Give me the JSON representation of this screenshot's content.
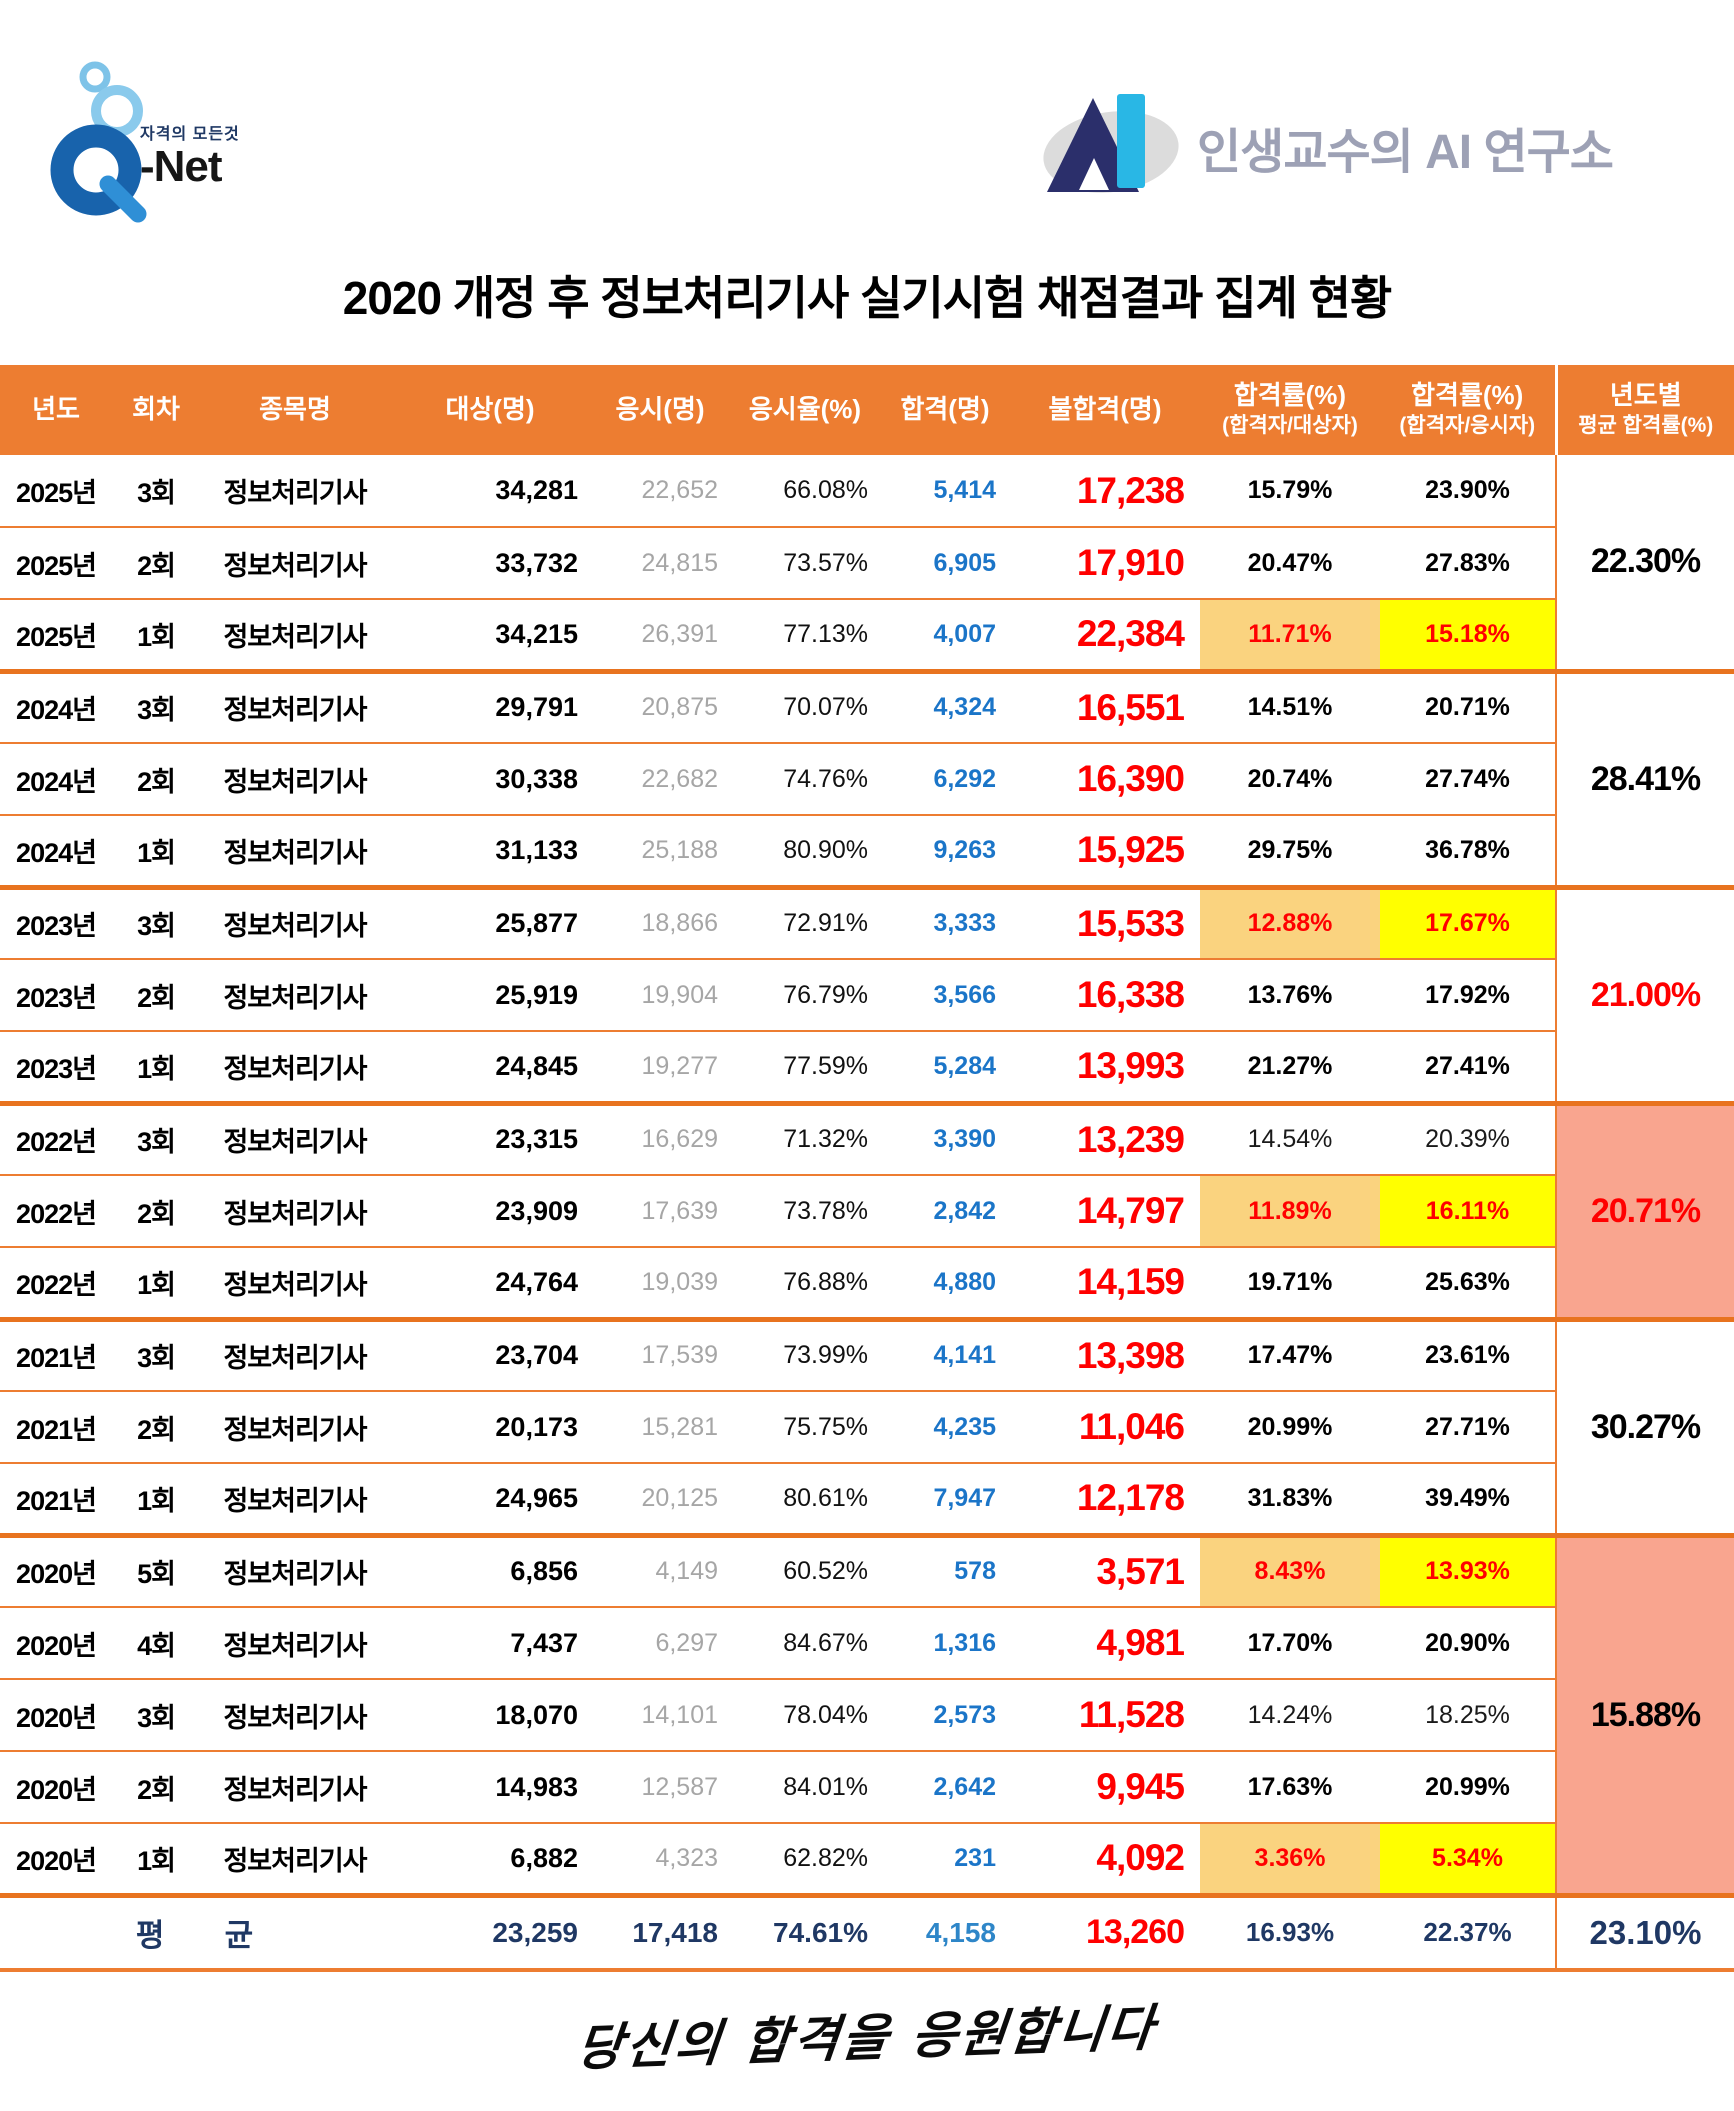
{
  "logos": {
    "qnet": {
      "tagline": "자격의 모든것",
      "name": "-Net"
    },
    "ai_lab": {
      "label": "인생교수의 AI 연구소"
    }
  },
  "title": "2020 개정 후 정보처리기사 실기시험 채점결과 집계 현황",
  "footer": {
    "signature": "당신의 합격을 응원합니다"
  },
  "colors": {
    "header_orange": "#ED7D31",
    "border_orange": "#ED7D31",
    "border_orange_thick": "#E8731F",
    "highlight_amber": "#FAD37F",
    "highlight_yellow": "#FFFF00",
    "highlight_salmon": "#F9A58F",
    "fail_red": "#FF0000",
    "pass_blue": "#1B75C8",
    "muted_gray": "#A6A6A6",
    "avg_navy": "#1F3864",
    "ai_text_gray": "#9DA1B5"
  },
  "chart_data": {
    "type": "table",
    "title": "2020 개정 후 정보처리기사 실기시험 채점결과 집계 현황",
    "columns": [
      {
        "line1": "년도"
      },
      {
        "line1": "회차"
      },
      {
        "line1": "종목명"
      },
      {
        "line1": "대상(명)"
      },
      {
        "line1": "응시(명)"
      },
      {
        "line1": "응시율(%)"
      },
      {
        "line1": "합격(명)"
      },
      {
        "line1": "불합격(명)"
      },
      {
        "line1": "합격률(%)",
        "line2": "(합격자/대상자)"
      },
      {
        "line1": "합격률(%)",
        "line2": "(합격자/응시자)"
      },
      {
        "line1": "년도별",
        "line2": "평균 합격률(%)"
      }
    ],
    "rows": [
      {
        "year": "2025년",
        "round": "3회",
        "subject": "정보처리기사",
        "target": "34,281",
        "applied": "22,652",
        "apply_rate": "66.08%",
        "passed": "5,414",
        "failed": "17,238",
        "rate_per_target": "15.79%",
        "rate_per_applied": "23.90%",
        "highlight": false,
        "light": false
      },
      {
        "year": "2025년",
        "round": "2회",
        "subject": "정보처리기사",
        "target": "33,732",
        "applied": "24,815",
        "apply_rate": "73.57%",
        "passed": "6,905",
        "failed": "17,910",
        "rate_per_target": "20.47%",
        "rate_per_applied": "27.83%",
        "highlight": false,
        "light": false
      },
      {
        "year": "2025년",
        "round": "1회",
        "subject": "정보처리기사",
        "target": "34,215",
        "applied": "26,391",
        "apply_rate": "77.13%",
        "passed": "4,007",
        "failed": "22,384",
        "rate_per_target": "11.71%",
        "rate_per_applied": "15.18%",
        "highlight": true,
        "light": false
      },
      {
        "year": "2024년",
        "round": "3회",
        "subject": "정보처리기사",
        "target": "29,791",
        "applied": "20,875",
        "apply_rate": "70.07%",
        "passed": "4,324",
        "failed": "16,551",
        "rate_per_target": "14.51%",
        "rate_per_applied": "20.71%",
        "highlight": false,
        "light": false
      },
      {
        "year": "2024년",
        "round": "2회",
        "subject": "정보처리기사",
        "target": "30,338",
        "applied": "22,682",
        "apply_rate": "74.76%",
        "passed": "6,292",
        "failed": "16,390",
        "rate_per_target": "20.74%",
        "rate_per_applied": "27.74%",
        "highlight": false,
        "light": false
      },
      {
        "year": "2024년",
        "round": "1회",
        "subject": "정보처리기사",
        "target": "31,133",
        "applied": "25,188",
        "apply_rate": "80.90%",
        "passed": "9,263",
        "failed": "15,925",
        "rate_per_target": "29.75%",
        "rate_per_applied": "36.78%",
        "highlight": false,
        "light": false
      },
      {
        "year": "2023년",
        "round": "3회",
        "subject": "정보처리기사",
        "target": "25,877",
        "applied": "18,866",
        "apply_rate": "72.91%",
        "passed": "3,333",
        "failed": "15,533",
        "rate_per_target": "12.88%",
        "rate_per_applied": "17.67%",
        "highlight": true,
        "light": false
      },
      {
        "year": "2023년",
        "round": "2회",
        "subject": "정보처리기사",
        "target": "25,919",
        "applied": "19,904",
        "apply_rate": "76.79%",
        "passed": "3,566",
        "failed": "16,338",
        "rate_per_target": "13.76%",
        "rate_per_applied": "17.92%",
        "highlight": false,
        "light": false
      },
      {
        "year": "2023년",
        "round": "1회",
        "subject": "정보처리기사",
        "target": "24,845",
        "applied": "19,277",
        "apply_rate": "77.59%",
        "passed": "5,284",
        "failed": "13,993",
        "rate_per_target": "21.27%",
        "rate_per_applied": "27.41%",
        "highlight": false,
        "light": false
      },
      {
        "year": "2022년",
        "round": "3회",
        "subject": "정보처리기사",
        "target": "23,315",
        "applied": "16,629",
        "apply_rate": "71.32%",
        "passed": "3,390",
        "failed": "13,239",
        "rate_per_target": "14.54%",
        "rate_per_applied": "20.39%",
        "highlight": false,
        "light": true
      },
      {
        "year": "2022년",
        "round": "2회",
        "subject": "정보처리기사",
        "target": "23,909",
        "applied": "17,639",
        "apply_rate": "73.78%",
        "passed": "2,842",
        "failed": "14,797",
        "rate_per_target": "11.89%",
        "rate_per_applied": "16.11%",
        "highlight": true,
        "light": false
      },
      {
        "year": "2022년",
        "round": "1회",
        "subject": "정보처리기사",
        "target": "24,764",
        "applied": "19,039",
        "apply_rate": "76.88%",
        "passed": "4,880",
        "failed": "14,159",
        "rate_per_target": "19.71%",
        "rate_per_applied": "25.63%",
        "highlight": false,
        "light": false
      },
      {
        "year": "2021년",
        "round": "3회",
        "subject": "정보처리기사",
        "target": "23,704",
        "applied": "17,539",
        "apply_rate": "73.99%",
        "passed": "4,141",
        "failed": "13,398",
        "rate_per_target": "17.47%",
        "rate_per_applied": "23.61%",
        "highlight": false,
        "light": false
      },
      {
        "year": "2021년",
        "round": "2회",
        "subject": "정보처리기사",
        "target": "20,173",
        "applied": "15,281",
        "apply_rate": "75.75%",
        "passed": "4,235",
        "failed": "11,046",
        "rate_per_target": "20.99%",
        "rate_per_applied": "27.71%",
        "highlight": false,
        "light": false
      },
      {
        "year": "2021년",
        "round": "1회",
        "subject": "정보처리기사",
        "target": "24,965",
        "applied": "20,125",
        "apply_rate": "80.61%",
        "passed": "7,947",
        "failed": "12,178",
        "rate_per_target": "31.83%",
        "rate_per_applied": "39.49%",
        "highlight": false,
        "light": false
      },
      {
        "year": "2020년",
        "round": "5회",
        "subject": "정보처리기사",
        "target": "6,856",
        "applied": "4,149",
        "apply_rate": "60.52%",
        "passed": "578",
        "failed": "3,571",
        "rate_per_target": "8.43%",
        "rate_per_applied": "13.93%",
        "highlight": true,
        "light": false
      },
      {
        "year": "2020년",
        "round": "4회",
        "subject": "정보처리기사",
        "target": "7,437",
        "applied": "6,297",
        "apply_rate": "84.67%",
        "passed": "1,316",
        "failed": "4,981",
        "rate_per_target": "17.70%",
        "rate_per_applied": "20.90%",
        "highlight": false,
        "light": false
      },
      {
        "year": "2020년",
        "round": "3회",
        "subject": "정보처리기사",
        "target": "18,070",
        "applied": "14,101",
        "apply_rate": "78.04%",
        "passed": "2,573",
        "failed": "11,528",
        "rate_per_target": "14.24%",
        "rate_per_applied": "18.25%",
        "highlight": false,
        "light": true
      },
      {
        "year": "2020년",
        "round": "2회",
        "subject": "정보처리기사",
        "target": "14,983",
        "applied": "12,587",
        "apply_rate": "84.01%",
        "passed": "2,642",
        "failed": "9,945",
        "rate_per_target": "17.63%",
        "rate_per_applied": "20.99%",
        "highlight": false,
        "light": false
      },
      {
        "year": "2020년",
        "round": "1회",
        "subject": "정보처리기사",
        "target": "6,882",
        "applied": "4,323",
        "apply_rate": "62.82%",
        "passed": "231",
        "failed": "4,092",
        "rate_per_target": "3.36%",
        "rate_per_applied": "5.34%",
        "highlight": true,
        "light": false
      }
    ],
    "year_groups": [
      {
        "year": "2025년",
        "rows": 3,
        "avg": "22.30%",
        "style": ""
      },
      {
        "year": "2024년",
        "rows": 3,
        "avg": "28.41%",
        "style": ""
      },
      {
        "year": "2023년",
        "rows": 3,
        "avg": "21.00%",
        "style": "red"
      },
      {
        "year": "2022년",
        "rows": 3,
        "avg": "20.71%",
        "style": "red salmon"
      },
      {
        "year": "2021년",
        "rows": 3,
        "avg": "30.27%",
        "style": ""
      },
      {
        "year": "2020년",
        "rows": 5,
        "avg": "15.88%",
        "style": "salmon"
      }
    ],
    "average": {
      "label": "평 균",
      "target": "23,259",
      "applied": "17,418",
      "apply_rate": "74.61%",
      "passed": "4,158",
      "failed": "13,260",
      "rate_per_target": "16.93%",
      "rate_per_applied": "22.37%",
      "total_avg": "23.10%"
    }
  }
}
